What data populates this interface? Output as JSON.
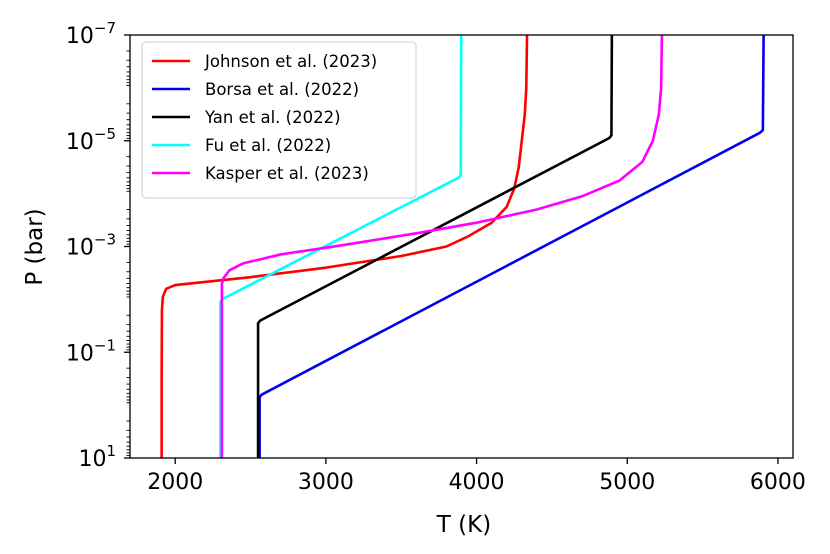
{
  "chart_data": {
    "type": "line",
    "xlabel": "T (K)",
    "ylabel": "P (bar)",
    "xlim": [
      1700,
      6100
    ],
    "ylim_log10": [
      1,
      -7
    ],
    "y_scale": "log",
    "y_inverted": true,
    "x_ticks": [
      2000,
      3000,
      4000,
      5000,
      6000
    ],
    "x_tick_labels": [
      "2000",
      "3000",
      "4000",
      "5000",
      "6000"
    ],
    "y_ticks_log10": [
      -7,
      -5,
      -3,
      -1,
      1
    ],
    "y_tick_bases": [
      "10",
      "10",
      "10",
      "10",
      "10"
    ],
    "y_tick_exponents": [
      "−7",
      "−5",
      "−3",
      "−1",
      "1"
    ],
    "grid": false,
    "legend_position": "top-left",
    "series": [
      {
        "name": "Johnson et al. (2023)",
        "color": "#ff0000",
        "points": [
          [
            1910,
            1
          ],
          [
            1910,
            -0.5
          ],
          [
            1912,
            -1.8
          ],
          [
            1918,
            -2.05
          ],
          [
            1940,
            -2.2
          ],
          [
            2000,
            -2.27
          ],
          [
            2500,
            -2.42
          ],
          [
            3000,
            -2.6
          ],
          [
            3500,
            -2.82
          ],
          [
            3800,
            -3.0
          ],
          [
            3950,
            -3.2
          ],
          [
            4100,
            -3.45
          ],
          [
            4200,
            -3.75
          ],
          [
            4250,
            -4.1
          ],
          [
            4280,
            -4.5
          ],
          [
            4300,
            -5.0
          ],
          [
            4320,
            -5.5
          ],
          [
            4330,
            -6.0
          ],
          [
            4335,
            -7
          ]
        ]
      },
      {
        "name": "Borsa et al. (2022)",
        "color": "#0000ee",
        "points": [
          [
            2560,
            1
          ],
          [
            2560,
            -0.15
          ],
          [
            2575,
            -0.2
          ],
          [
            5880,
            -5.15
          ],
          [
            5900,
            -5.2
          ],
          [
            5905,
            -7
          ]
        ]
      },
      {
        "name": "Yan et al. (2022)",
        "color": "#000000",
        "points": [
          [
            2550,
            1
          ],
          [
            2550,
            -1.55
          ],
          [
            2565,
            -1.6
          ],
          [
            4880,
            -5.05
          ],
          [
            4895,
            -5.1
          ],
          [
            4898,
            -7
          ]
        ]
      },
      {
        "name": "Fu et al. (2022)",
        "color": "#00ffff",
        "points": [
          [
            2300,
            1
          ],
          [
            2300,
            -1.95
          ],
          [
            2310,
            -2.0
          ],
          [
            3880,
            -4.3
          ],
          [
            3895,
            -4.35
          ],
          [
            3898,
            -7
          ]
        ]
      },
      {
        "name": "Kasper et al. (2023)",
        "color": "#ff00ff",
        "points": [
          [
            2310,
            1
          ],
          [
            2310,
            -2.3
          ],
          [
            2320,
            -2.4
          ],
          [
            2360,
            -2.55
          ],
          [
            2450,
            -2.68
          ],
          [
            2700,
            -2.85
          ],
          [
            3100,
            -3.02
          ],
          [
            3600,
            -3.25
          ],
          [
            4000,
            -3.45
          ],
          [
            4400,
            -3.7
          ],
          [
            4700,
            -3.95
          ],
          [
            4950,
            -4.25
          ],
          [
            5100,
            -4.6
          ],
          [
            5170,
            -5.0
          ],
          [
            5210,
            -5.5
          ],
          [
            5225,
            -6.0
          ],
          [
            5230,
            -7
          ]
        ]
      }
    ]
  }
}
